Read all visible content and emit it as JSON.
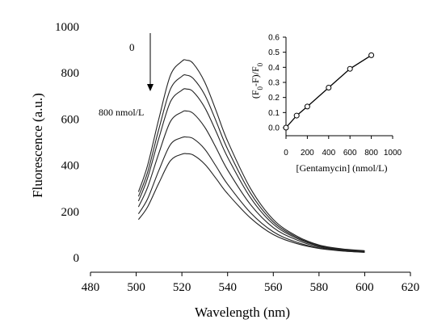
{
  "chart_data": [
    {
      "type": "line",
      "title": "",
      "xlabel": "Wavelength (nm)",
      "ylabel": "Fluorescence (a.u.)",
      "xlim": [
        480,
        620
      ],
      "ylim": [
        0,
        1000
      ],
      "x_ticks": [
        "480",
        "500",
        "520",
        "540",
        "560",
        "580",
        "600",
        "620"
      ],
      "y_ticks": [
        "0",
        "200",
        "400",
        "600",
        "800",
        "1000"
      ],
      "grid": false,
      "legend": "none",
      "x": [
        501,
        505,
        510,
        515,
        520,
        522,
        525,
        530,
        535,
        540,
        550,
        560,
        570,
        580,
        590,
        600
      ],
      "series": [
        {
          "values": [
            285,
            400,
            605,
            790,
            850,
            855,
            840,
            760,
            635,
            505,
            300,
            165,
            95,
            55,
            38,
            30
          ]
        },
        {
          "values": [
            265,
            370,
            560,
            730,
            785,
            790,
            775,
            705,
            590,
            470,
            280,
            155,
            90,
            52,
            36,
            29
          ]
        },
        {
          "values": [
            245,
            345,
            520,
            675,
            725,
            730,
            718,
            650,
            545,
            435,
            260,
            145,
            85,
            50,
            34,
            28
          ]
        },
        {
          "values": [
            220,
            305,
            455,
            590,
            630,
            635,
            624,
            565,
            475,
            380,
            230,
            130,
            78,
            46,
            32,
            26
          ]
        },
        {
          "values": [
            190,
            255,
            380,
            490,
            520,
            522,
            515,
            470,
            395,
            318,
            195,
            112,
            68,
            42,
            30,
            24
          ]
        },
        {
          "values": [
            165,
            220,
            325,
            420,
            448,
            450,
            444,
            405,
            342,
            277,
            172,
            100,
            62,
            40,
            29,
            23
          ]
        }
      ],
      "annotations": {
        "start_label": "0",
        "end_label": "800 nmol/L"
      }
    },
    {
      "type": "line",
      "title": "",
      "xlabel": "[Gentamycin] (nmol/L)",
      "ylabel_parts": {
        "a": "(F",
        "sub1": "0",
        "b": "-F)/F",
        "sub2": "0"
      },
      "xlim": [
        0,
        1000
      ],
      "ylim": [
        0,
        0.6
      ],
      "x_ticks": [
        "0",
        "200",
        "400",
        "600",
        "800",
        "1000"
      ],
      "y_ticks": [
        "0.0",
        "0.1",
        "0.2",
        "0.3",
        "0.4",
        "0.5",
        "0.6"
      ],
      "grid": false,
      "x": [
        0,
        100,
        200,
        400,
        600,
        800
      ],
      "values": [
        0.0,
        0.08,
        0.14,
        0.265,
        0.39,
        0.48
      ]
    }
  ]
}
